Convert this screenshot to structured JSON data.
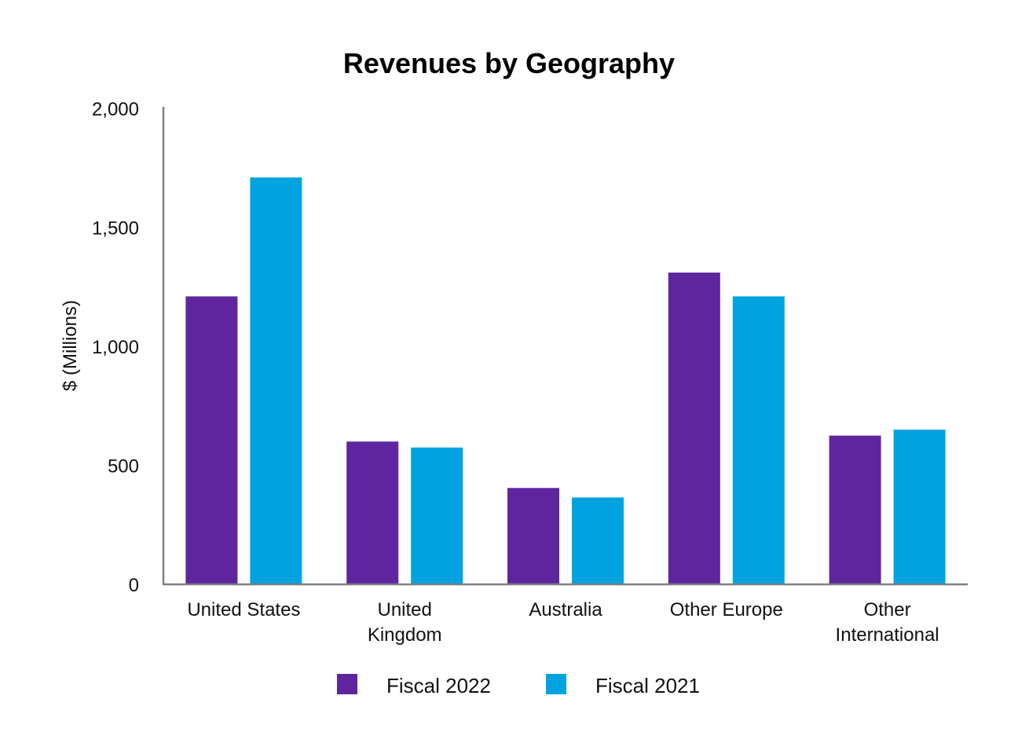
{
  "chart_data": {
    "type": "bar",
    "title": "Revenues by Geography",
    "xlabel": "",
    "ylabel": "$ (Millions)",
    "ylim": [
      0,
      2000
    ],
    "yticks": [
      "0",
      "500",
      "1,000",
      "1,500",
      "2,000"
    ],
    "ytick_values": [
      0,
      500,
      1000,
      1500,
      2000
    ],
    "categories": [
      [
        "United States"
      ],
      [
        "United",
        "Kingdom"
      ],
      [
        "Australia"
      ],
      [
        "Other Europe"
      ],
      [
        "Other",
        "International"
      ]
    ],
    "series": [
      {
        "name": "Fiscal 2022",
        "color": "#5f259f",
        "values": [
          1210,
          600,
          405,
          1310,
          625
        ]
      },
      {
        "name": "Fiscal 2021",
        "color": "#00a3e0",
        "values": [
          1710,
          575,
          365,
          1210,
          650
        ]
      }
    ],
    "legend_position": "bottom-center",
    "grid": false
  }
}
